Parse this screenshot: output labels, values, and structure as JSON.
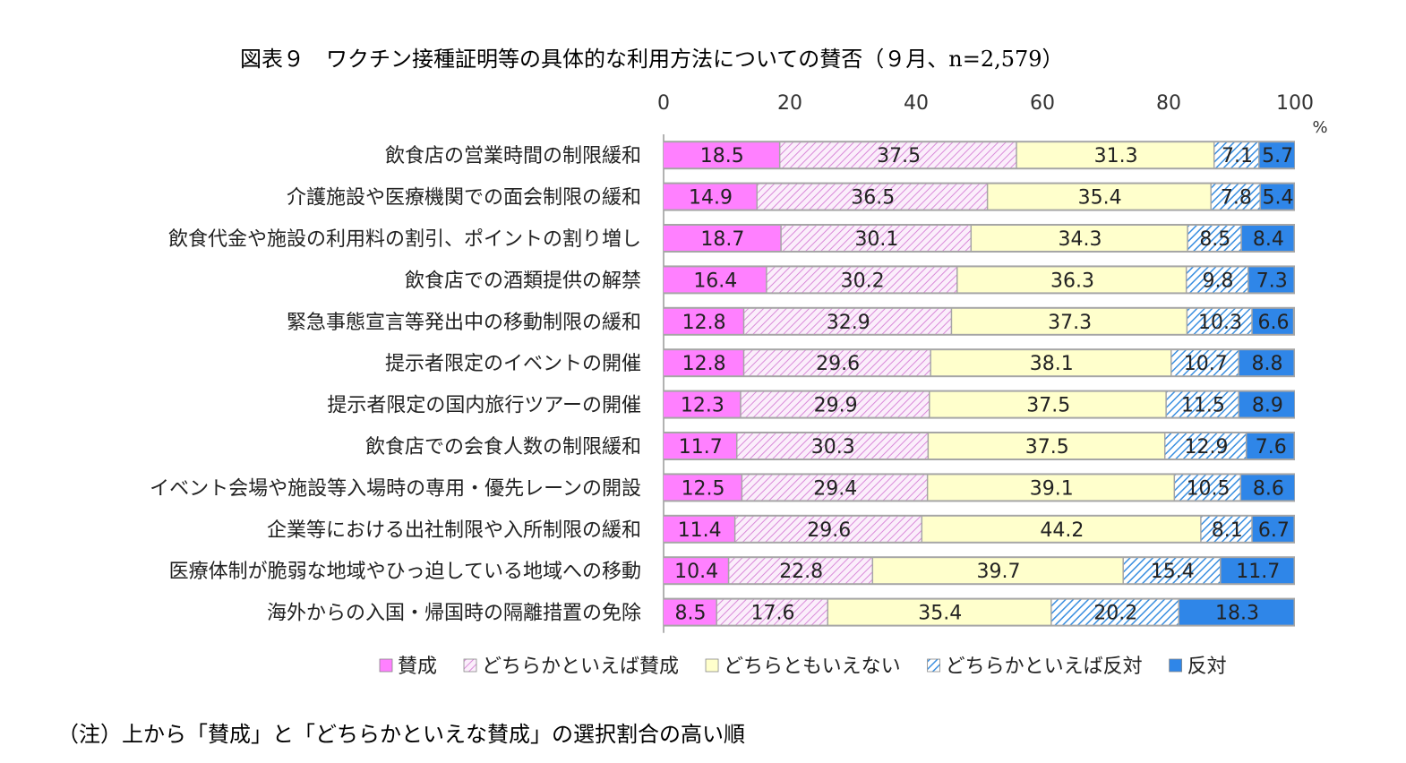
{
  "page": {
    "title": "図表９　ワクチン接種証明等の具体的な利用方法についての賛否（９月、n=2,579）",
    "note": "（注）上から「賛成」と「どちらかといえな賛成」の選択割合の高い順"
  },
  "chart_data": {
    "type": "bar",
    "orientation": "horizontal",
    "stacked": true,
    "title": "図表９　ワクチン接種証明等の具体的な利用方法についての賛否（９月、n=2,579）",
    "x_unit": "%",
    "xlim": [
      0,
      100
    ],
    "xticks": [
      "0",
      "20",
      "40",
      "60",
      "80",
      "100"
    ],
    "legend_position": "bottom",
    "categories": [
      "飲食店の営業時間の制限緩和",
      "介護施設や医療機関での面会制限の緩和",
      "飲食代金や施設の利用料の割引、ポイントの割り増し",
      "飲食店での酒類提供の解禁",
      "緊急事態宣言等発出中の移動制限の緩和",
      "提示者限定のイベントの開催",
      "提示者限定の国内旅行ツアーの開催",
      "飲食店での会食人数の制限緩和",
      "イベント会場や施設等入場時の専用・優先レーンの開設",
      "企業等における出社制限や入所制限の緩和",
      "医療体制が脆弱な地域やひっ迫している地域への移動",
      "海外からの入国・帰国時の隔離措置の免除"
    ],
    "series": [
      {
        "name": "賛成",
        "color": "#ff80ff",
        "pattern": "solid",
        "values": [
          "18.5",
          "14.9",
          "18.7",
          "16.4",
          "12.8",
          "12.8",
          "12.3",
          "11.7",
          "12.5",
          "11.4",
          "10.4",
          "8.5"
        ]
      },
      {
        "name": "どちらかといえば賛成",
        "color": "#e59be5",
        "pattern": "hatch-light",
        "values": [
          "37.5",
          "36.5",
          "30.1",
          "30.2",
          "32.9",
          "29.6",
          "29.9",
          "30.3",
          "29.4",
          "29.6",
          "22.8",
          "17.6"
        ]
      },
      {
        "name": "どちらともいえない",
        "color": "#ffffcc",
        "pattern": "solid",
        "values": [
          "31.3",
          "35.4",
          "34.3",
          "36.3",
          "37.3",
          "38.1",
          "37.5",
          "37.5",
          "39.1",
          "44.2",
          "39.7",
          "35.4"
        ]
      },
      {
        "name": "どちらかといえば反対",
        "color": "#3a8fe0",
        "pattern": "hatch-dark",
        "values": [
          "7.1",
          "7.8",
          "8.5",
          "9.8",
          "10.3",
          "10.7",
          "11.5",
          "12.9",
          "10.5",
          "8.1",
          "15.4",
          "20.2"
        ]
      },
      {
        "name": "反対",
        "color": "#2f86e8",
        "pattern": "solid",
        "values": [
          "5.7",
          "5.4",
          "8.4",
          "7.3",
          "6.6",
          "8.8",
          "8.9",
          "7.6",
          "8.6",
          "6.7",
          "11.7",
          "18.3"
        ]
      }
    ]
  }
}
